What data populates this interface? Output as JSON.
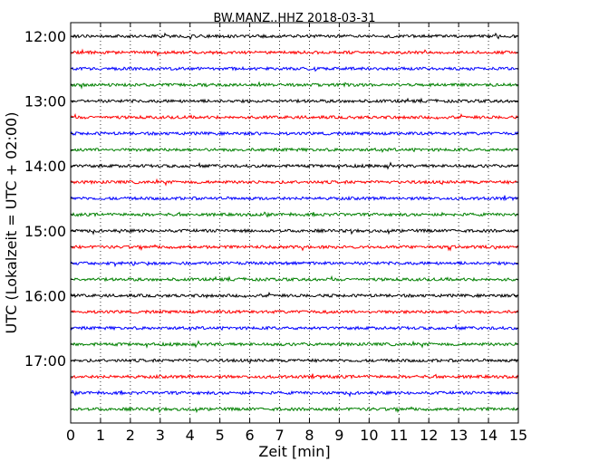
{
  "chart_data": {
    "type": "line",
    "title": "BW.MANZ..HHZ 2018-03-31",
    "xlabel": "Zeit  [min]",
    "ylabel": "UTC (Lokalzeit = UTC + 02:00)",
    "xlim": [
      0,
      15
    ],
    "x_ticks": [
      "0",
      "1",
      "2",
      "3",
      "4",
      "5",
      "6",
      "7",
      "8",
      "9",
      "10",
      "11",
      "12",
      "13",
      "14",
      "15"
    ],
    "y_tick_labels": [
      "12:00",
      "13:00",
      "14:00",
      "15:00",
      "16:00",
      "17:00"
    ],
    "grid": "vertical dotted",
    "trace_interval_min": 15,
    "trace_colors": [
      "#000000",
      "#ff0000",
      "#0000ff",
      "#008000"
    ],
    "traces": [
      {
        "start": "12:00"
      },
      {
        "start": "12:15"
      },
      {
        "start": "12:30"
      },
      {
        "start": "12:45"
      },
      {
        "start": "13:00"
      },
      {
        "start": "13:15"
      },
      {
        "start": "13:30"
      },
      {
        "start": "13:45"
      },
      {
        "start": "14:00"
      },
      {
        "start": "14:15"
      },
      {
        "start": "14:30"
      },
      {
        "start": "14:45"
      },
      {
        "start": "15:00"
      },
      {
        "start": "15:15"
      },
      {
        "start": "15:30"
      },
      {
        "start": "15:45"
      },
      {
        "start": "16:00"
      },
      {
        "start": "16:15"
      },
      {
        "start": "16:30"
      },
      {
        "start": "16:45"
      },
      {
        "start": "17:00"
      },
      {
        "start": "17:15"
      },
      {
        "start": "17:30"
      },
      {
        "start": "17:45"
      }
    ]
  }
}
